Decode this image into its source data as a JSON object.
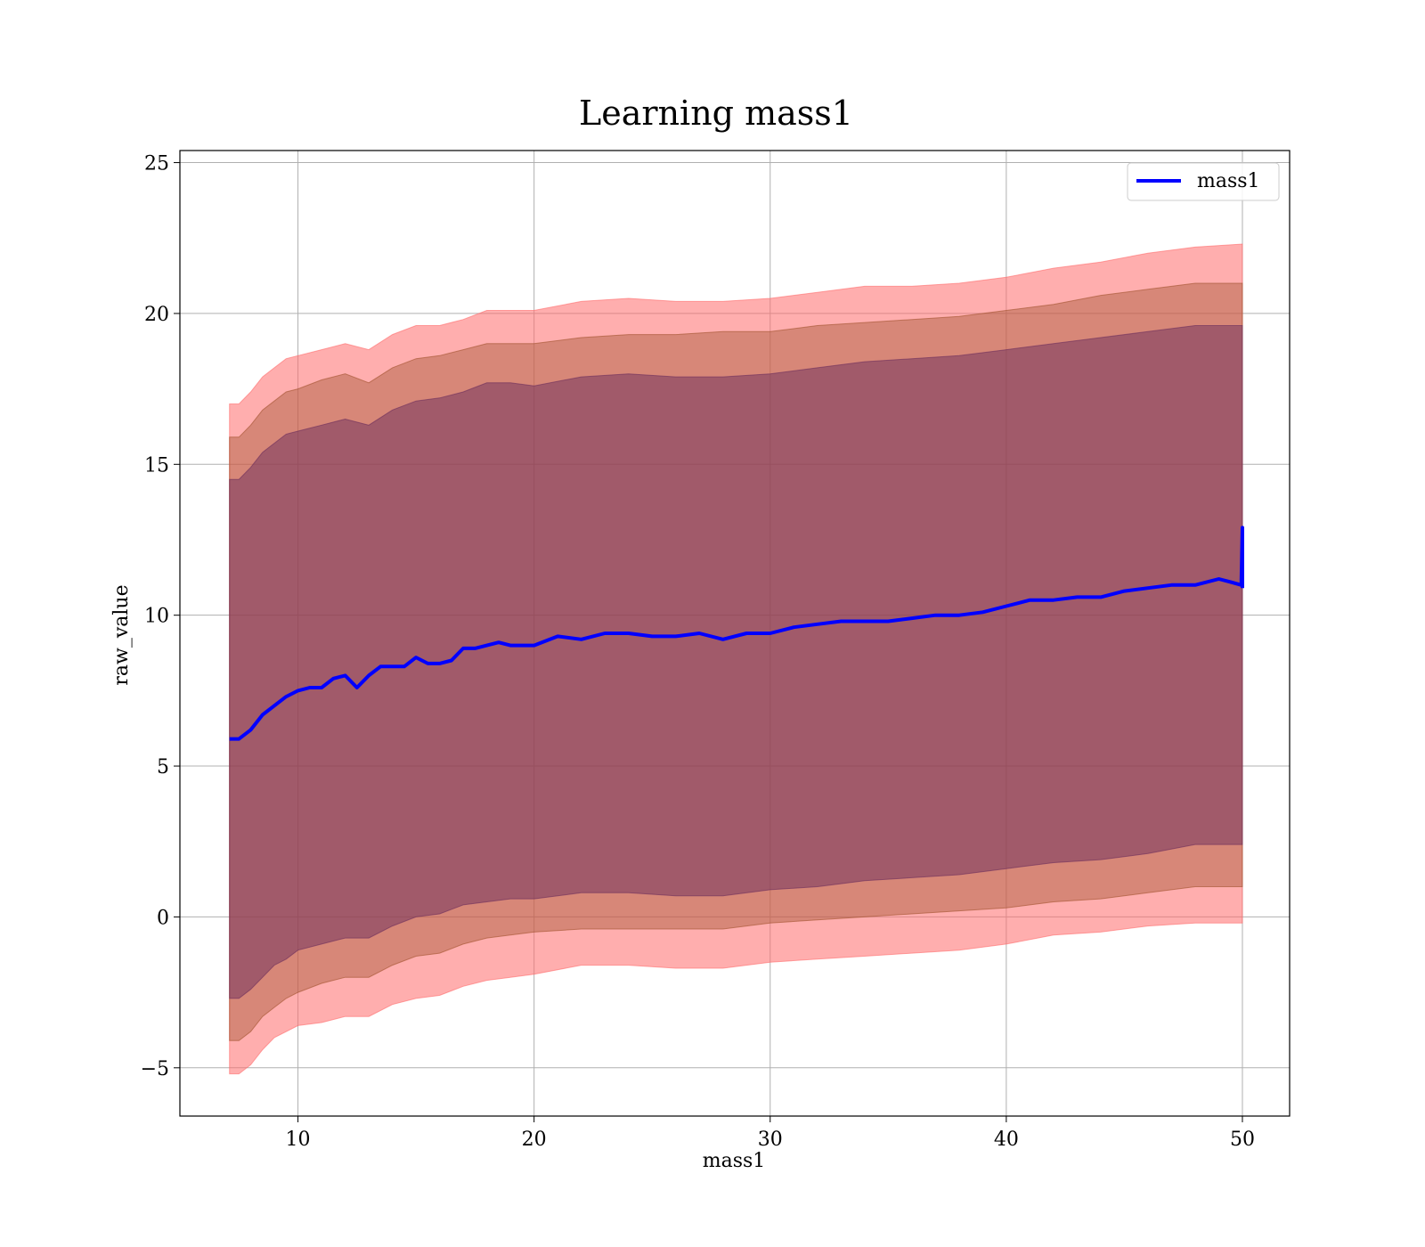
{
  "chart_data": {
    "type": "line",
    "title": "Learning mass1",
    "xlabel": "mass1",
    "ylabel": "raw_value",
    "xlim": [
      5,
      52
    ],
    "ylim": [
      -6.6,
      25.4
    ],
    "x_ticks": [
      10,
      20,
      30,
      40,
      50
    ],
    "y_ticks": [
      -5,
      0,
      5,
      10,
      15,
      20,
      25
    ],
    "x_tick_labels": [
      "10",
      "20",
      "30",
      "40",
      "50"
    ],
    "y_tick_labels": [
      "−5",
      "0",
      "5",
      "10",
      "15",
      "20",
      "25"
    ],
    "grid": true,
    "legend": {
      "position": "top-right",
      "entries": [
        "mass1"
      ]
    },
    "series": [
      {
        "name": "mass1",
        "color": "#0000ff",
        "x": [
          7.1,
          7.5,
          8.0,
          8.5,
          9.0,
          9.5,
          10.0,
          10.5,
          11.0,
          11.5,
          12.0,
          12.5,
          13.0,
          13.5,
          14.0,
          14.5,
          15.0,
          15.5,
          16.0,
          16.5,
          17.0,
          17.5,
          18.0,
          18.5,
          19.0,
          19.5,
          20.0,
          21.0,
          22.0,
          23.0,
          24.0,
          25.0,
          26.0,
          27.0,
          28.0,
          29.0,
          30.0,
          31.0,
          32.0,
          33.0,
          34.0,
          35.0,
          36.0,
          37.0,
          38.0,
          39.0,
          40.0,
          41.0,
          42.0,
          43.0,
          44.0,
          45.0,
          46.0,
          47.0,
          48.0,
          49.0,
          49.5,
          49.95,
          50.0,
          50.0
        ],
        "y": [
          5.9,
          5.9,
          6.2,
          6.7,
          7.0,
          7.3,
          7.5,
          7.6,
          7.6,
          7.9,
          8.0,
          7.6,
          8.0,
          8.3,
          8.3,
          8.3,
          8.6,
          8.4,
          8.4,
          8.5,
          8.9,
          8.9,
          9.0,
          9.1,
          9.0,
          9.0,
          9.0,
          9.3,
          9.2,
          9.4,
          9.4,
          9.3,
          9.3,
          9.4,
          9.2,
          9.4,
          9.4,
          9.6,
          9.7,
          9.8,
          9.8,
          9.8,
          9.9,
          10.0,
          10.0,
          10.1,
          10.3,
          10.5,
          10.5,
          10.6,
          10.6,
          10.8,
          10.9,
          11.0,
          11.0,
          11.2,
          11.1,
          11.0,
          12.9,
          10.9
        ]
      }
    ],
    "bands": [
      {
        "color": "#ff6b6b",
        "opacity": 0.55,
        "x": [
          7.1,
          7.5,
          8.0,
          8.5,
          9.0,
          9.5,
          10.0,
          11.0,
          12.0,
          13.0,
          14.0,
          15.0,
          16.0,
          17.0,
          18.0,
          19.0,
          20.0,
          22.0,
          24.0,
          26.0,
          28.0,
          30.0,
          32.0,
          34.0,
          36.0,
          38.0,
          40.0,
          42.0,
          44.0,
          46.0,
          48.0,
          50.0
        ],
        "lower": [
          -5.2,
          -5.2,
          -4.9,
          -4.4,
          -4.0,
          -3.8,
          -3.6,
          -3.5,
          -3.3,
          -3.3,
          -2.9,
          -2.7,
          -2.6,
          -2.3,
          -2.1,
          -2.0,
          -1.9,
          -1.6,
          -1.6,
          -1.7,
          -1.7,
          -1.5,
          -1.4,
          -1.3,
          -1.2,
          -1.1,
          -0.9,
          -0.6,
          -0.5,
          -0.3,
          -0.2,
          -0.2
        ],
        "upper": [
          17.0,
          17.0,
          17.4,
          17.9,
          18.2,
          18.5,
          18.6,
          18.8,
          19.0,
          18.8,
          19.3,
          19.6,
          19.6,
          19.8,
          20.1,
          20.1,
          20.1,
          20.4,
          20.5,
          20.4,
          20.4,
          20.5,
          20.7,
          20.9,
          20.9,
          21.0,
          21.2,
          21.5,
          21.7,
          22.0,
          22.2,
          22.3
        ]
      },
      {
        "color": "#a0522d",
        "opacity": 0.42,
        "x": [
          7.1,
          7.5,
          8.0,
          8.5,
          9.0,
          9.5,
          10.0,
          11.0,
          12.0,
          13.0,
          14.0,
          15.0,
          16.0,
          17.0,
          18.0,
          19.0,
          20.0,
          22.0,
          24.0,
          26.0,
          28.0,
          30.0,
          32.0,
          34.0,
          36.0,
          38.0,
          40.0,
          42.0,
          44.0,
          46.0,
          48.0,
          50.0
        ],
        "lower": [
          -4.1,
          -4.1,
          -3.8,
          -3.3,
          -3.0,
          -2.7,
          -2.5,
          -2.2,
          -2.0,
          -2.0,
          -1.6,
          -1.3,
          -1.2,
          -0.9,
          -0.7,
          -0.6,
          -0.5,
          -0.4,
          -0.4,
          -0.4,
          -0.4,
          -0.2,
          -0.1,
          0.0,
          0.1,
          0.2,
          0.3,
          0.5,
          0.6,
          0.8,
          1.0,
          1.0
        ],
        "upper": [
          15.9,
          15.9,
          16.3,
          16.8,
          17.1,
          17.4,
          17.5,
          17.8,
          18.0,
          17.7,
          18.2,
          18.5,
          18.6,
          18.8,
          19.0,
          19.0,
          19.0,
          19.2,
          19.3,
          19.3,
          19.4,
          19.4,
          19.6,
          19.7,
          19.8,
          19.9,
          20.1,
          20.3,
          20.6,
          20.8,
          21.0,
          21.0
        ]
      },
      {
        "color": "#6b2d5c",
        "opacity": 0.5,
        "x": [
          7.1,
          7.5,
          8.0,
          8.5,
          9.0,
          9.5,
          10.0,
          11.0,
          12.0,
          13.0,
          14.0,
          15.0,
          16.0,
          17.0,
          18.0,
          19.0,
          20.0,
          22.0,
          24.0,
          26.0,
          28.0,
          30.0,
          32.0,
          34.0,
          36.0,
          38.0,
          40.0,
          42.0,
          44.0,
          46.0,
          48.0,
          50.0
        ],
        "lower": [
          -2.7,
          -2.7,
          -2.4,
          -2.0,
          -1.6,
          -1.4,
          -1.1,
          -0.9,
          -0.7,
          -0.7,
          -0.3,
          0.0,
          0.1,
          0.4,
          0.5,
          0.6,
          0.6,
          0.8,
          0.8,
          0.7,
          0.7,
          0.9,
          1.0,
          1.2,
          1.3,
          1.4,
          1.6,
          1.8,
          1.9,
          2.1,
          2.4,
          2.4
        ],
        "upper": [
          14.5,
          14.5,
          14.9,
          15.4,
          15.7,
          16.0,
          16.1,
          16.3,
          16.5,
          16.3,
          16.8,
          17.1,
          17.2,
          17.4,
          17.7,
          17.7,
          17.6,
          17.9,
          18.0,
          17.9,
          17.9,
          18.0,
          18.2,
          18.4,
          18.5,
          18.6,
          18.8,
          19.0,
          19.2,
          19.4,
          19.6,
          19.6
        ]
      }
    ]
  }
}
